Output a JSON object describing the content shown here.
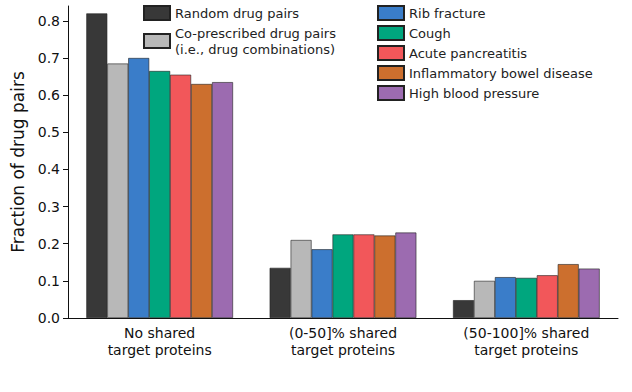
{
  "chart_data": {
    "type": "bar",
    "ylabel": "Fraction of drug pairs",
    "categories": [
      "No shared\ntarget proteins",
      "(0-50]% shared\ntarget proteins",
      "(50-100]% shared\ntarget proteins"
    ],
    "series": [
      {
        "name": "Random drug pairs",
        "color": "#383838",
        "values": [
          0.82,
          0.135,
          0.048
        ]
      },
      {
        "name": "Co-prescribed drug pairs\n(i.e., drug combinations)",
        "color": "#b8b8b8",
        "values": [
          0.685,
          0.21,
          0.1
        ]
      },
      {
        "name": "Rib fracture",
        "color": "#3a7dc9",
        "values": [
          0.7,
          0.185,
          0.11
        ]
      },
      {
        "name": "Cough",
        "color": "#00a67e",
        "values": [
          0.665,
          0.225,
          0.108
        ]
      },
      {
        "name": "Acute pancreatitis",
        "color": "#f2575a",
        "values": [
          0.655,
          0.225,
          0.115
        ]
      },
      {
        "name": "Inflammatory bowel disease",
        "color": "#cc6f2e",
        "values": [
          0.63,
          0.222,
          0.145
        ]
      },
      {
        "name": "High blood pressure",
        "color": "#9c6bb0",
        "values": [
          0.635,
          0.23,
          0.133
        ]
      }
    ],
    "ylim": [
      0,
      0.84
    ],
    "yticks": [
      {
        "value": 0,
        "label": "0.0"
      },
      0.1,
      0.2,
      0.3,
      0.4,
      0.5,
      0.6,
      0.7,
      0.8
    ],
    "grid": false,
    "legend": "top"
  }
}
